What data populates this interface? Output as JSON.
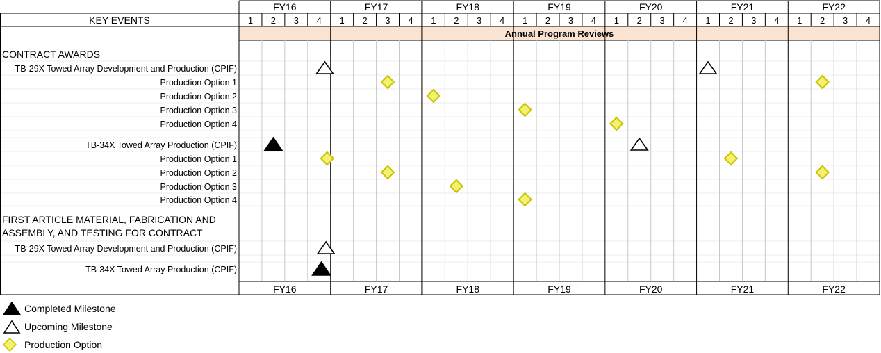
{
  "chart_data": {
    "type": "table",
    "key_events_header": "KEY EVENTS",
    "fiscal_years": [
      "FY16",
      "FY17",
      "FY18",
      "FY19",
      "FY20",
      "FY21",
      "FY22"
    ],
    "quarters": [
      "1",
      "2",
      "3",
      "4"
    ],
    "banner": "Annual Program Reviews",
    "sections": [
      {
        "heading_lines": [
          "CONTRACT AWARDS"
        ],
        "rows": [
          {
            "label": "TB-29X Towed Array Development and Production (CPIF)",
            "events": [
              {
                "type": "upcoming",
                "fy": "FY16",
                "q": 4.75
              },
              {
                "type": "upcoming",
                "fy": "FY21",
                "q": 1.5
              }
            ]
          },
          {
            "label": "Production Option 1",
            "events": [
              {
                "type": "option",
                "fy": "FY17",
                "q": 3.5
              },
              {
                "type": "option",
                "fy": "FY22",
                "q": 2.5
              }
            ]
          },
          {
            "label": "Production Option 2",
            "events": [
              {
                "type": "option",
                "fy": "FY18",
                "q": 1.5
              }
            ]
          },
          {
            "label": "Production Option 3",
            "events": [
              {
                "type": "option",
                "fy": "FY19",
                "q": 1.5
              }
            ]
          },
          {
            "label": "Production Option 4",
            "events": [
              {
                "type": "option",
                "fy": "FY20",
                "q": 1.5
              }
            ]
          },
          {
            "label": "TB-34X Towed Array Production (CPIF)",
            "events": [
              {
                "type": "completed",
                "fy": "FY16",
                "q": 2.5
              },
              {
                "type": "upcoming",
                "fy": "FY20",
                "q": 2.5
              }
            ]
          },
          {
            "label": "Production Option 1",
            "events": [
              {
                "type": "option",
                "fy": "FY16",
                "q": 4.85
              },
              {
                "type": "option",
                "fy": "FY21",
                "q": 2.5
              }
            ]
          },
          {
            "label": "Production Option 2",
            "events": [
              {
                "type": "option",
                "fy": "FY17",
                "q": 3.5
              },
              {
                "type": "option",
                "fy": "FY22",
                "q": 2.5
              }
            ]
          },
          {
            "label": "Production Option 3",
            "events": [
              {
                "type": "option",
                "fy": "FY18",
                "q": 2.5
              }
            ]
          },
          {
            "label": "Production Option 4",
            "events": [
              {
                "type": "option",
                "fy": "FY19",
                "q": 1.5
              }
            ]
          }
        ]
      },
      {
        "heading_lines": [
          "FIRST ARTICLE MATERIAL, FABRICATION AND",
          "ASSEMBLY, AND TESTING FOR CONTRACT"
        ],
        "rows": [
          {
            "label": "TB-29X Towed Array Development and Production (CPIF)",
            "events": [
              {
                "type": "upcoming",
                "fy": "FY16",
                "q": 4.8
              }
            ]
          },
          {
            "label": "TB-34X Towed Array Production (CPIF)",
            "events": [
              {
                "type": "completed",
                "fy": "FY16",
                "q": 4.6
              }
            ]
          }
        ]
      }
    ],
    "legend": [
      {
        "type": "completed",
        "label": "Completed Milestone"
      },
      {
        "type": "upcoming",
        "label": "Upcoming Milestone"
      },
      {
        "type": "option",
        "label": "Production Option"
      }
    ],
    "colors": {
      "banner_fill": "#fbe3d2",
      "option_fill": "#f4f170",
      "option_stroke": "#c8c400",
      "grid_minor": "#c8c8c8",
      "row_band": "#ececec"
    }
  }
}
